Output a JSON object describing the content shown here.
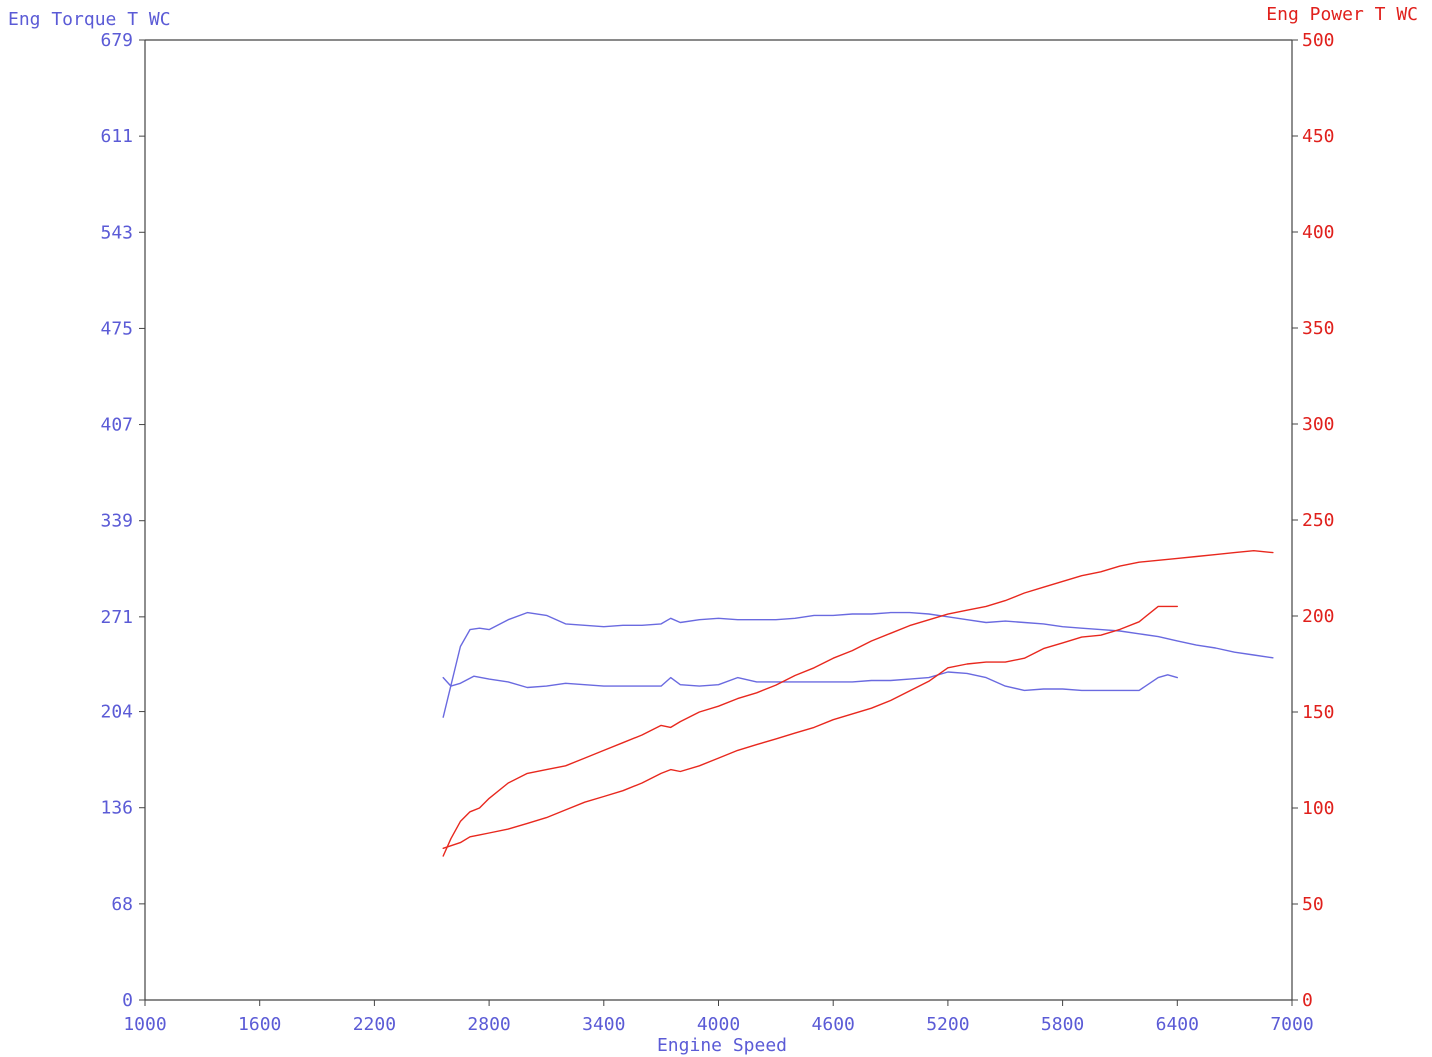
{
  "chart_data": {
    "type": "line",
    "xlabel": "Engine Speed",
    "ylabel_left": "Eng Torque T WC",
    "ylabel_right": "Eng Power T WC",
    "xlim": [
      1000,
      7000
    ],
    "ylim_left": [
      0,
      679
    ],
    "ylim_right": [
      0,
      500
    ],
    "x_ticks": [
      1000,
      1600,
      2200,
      2800,
      3400,
      4000,
      4600,
      5200,
      5800,
      6400,
      7000
    ],
    "y_left_ticks": [
      0,
      68,
      136,
      204,
      271,
      339,
      407,
      475,
      543,
      611,
      679
    ],
    "y_right_ticks": [
      0,
      50,
      100,
      150,
      200,
      250,
      300,
      350,
      400,
      450,
      500
    ],
    "grid": false,
    "colors": {
      "torque": "#6a6ae0",
      "power": "#e8281e",
      "axis": "#444444"
    },
    "series": [
      {
        "axis": "left",
        "color": "#6a6ae0",
        "x": [
          2560,
          2650,
          2700,
          2750,
          2800,
          2900,
          3000,
          3100,
          3200,
          3300,
          3400,
          3500,
          3600,
          3700,
          3750,
          3800,
          3900,
          4000,
          4100,
          4200,
          4300,
          4400,
          4500,
          4600,
          4700,
          4800,
          4900,
          5000,
          5100,
          5200,
          5300,
          5400,
          5500,
          5600,
          5700,
          5800,
          5900,
          6000,
          6100,
          6200,
          6300,
          6400,
          6500,
          6600,
          6700,
          6800,
          6900
        ],
        "y": [
          200,
          250,
          262,
          263,
          262,
          269,
          274,
          272,
          266,
          265,
          264,
          265,
          265,
          266,
          270,
          267,
          269,
          270,
          269,
          269,
          269,
          270,
          272,
          272,
          273,
          273,
          274,
          274,
          273,
          271,
          269,
          267,
          268,
          267,
          266,
          264,
          263,
          262,
          261,
          259,
          257,
          254,
          251,
          249,
          246,
          244,
          242
        ]
      },
      {
        "axis": "left",
        "color": "#6a6ae0",
        "x": [
          2560,
          2600,
          2650,
          2720,
          2800,
          2900,
          3000,
          3100,
          3200,
          3300,
          3400,
          3500,
          3600,
          3700,
          3750,
          3800,
          3900,
          4000,
          4100,
          4200,
          4300,
          4400,
          4500,
          4600,
          4700,
          4800,
          4900,
          5000,
          5100,
          5200,
          5300,
          5400,
          5500,
          5600,
          5700,
          5800,
          5900,
          6000,
          6100,
          6200,
          6300,
          6350,
          6400
        ],
        "y": [
          228,
          222,
          224,
          229,
          227,
          225,
          221,
          222,
          224,
          223,
          222,
          222,
          222,
          222,
          228,
          223,
          222,
          223,
          228,
          225,
          225,
          225,
          225,
          225,
          225,
          226,
          226,
          227,
          228,
          232,
          231,
          228,
          222,
          219,
          220,
          220,
          219,
          219,
          219,
          219,
          228,
          230,
          228
        ]
      },
      {
        "axis": "right",
        "color": "#e8281e",
        "x": [
          2560,
          2600,
          2650,
          2700,
          2750,
          2800,
          2900,
          3000,
          3100,
          3200,
          3300,
          3400,
          3500,
          3600,
          3700,
          3750,
          3800,
          3900,
          4000,
          4100,
          4200,
          4300,
          4400,
          4500,
          4600,
          4700,
          4800,
          4900,
          5000,
          5100,
          5200,
          5300,
          5400,
          5500,
          5600,
          5700,
          5800,
          5900,
          6000,
          6100,
          6200,
          6300,
          6400,
          6500,
          6600,
          6700,
          6800,
          6900
        ],
        "y": [
          75,
          84,
          93,
          98,
          100,
          105,
          113,
          118,
          120,
          122,
          126,
          130,
          134,
          138,
          143,
          142,
          145,
          150,
          153,
          157,
          160,
          164,
          169,
          173,
          178,
          182,
          187,
          191,
          195,
          198,
          201,
          203,
          205,
          208,
          212,
          215,
          218,
          221,
          223,
          226,
          228,
          229,
          230,
          231,
          232,
          233,
          234,
          233
        ]
      },
      {
        "axis": "right",
        "color": "#e8281e",
        "x": [
          2560,
          2650,
          2700,
          2750,
          2800,
          2900,
          3000,
          3100,
          3200,
          3300,
          3400,
          3500,
          3600,
          3700,
          3750,
          3800,
          3900,
          4000,
          4100,
          4200,
          4300,
          4400,
          4500,
          4600,
          4700,
          4800,
          4900,
          5000,
          5100,
          5200,
          5300,
          5400,
          5500,
          5600,
          5700,
          5800,
          5900,
          6000,
          6100,
          6200,
          6300,
          6350,
          6400
        ],
        "y": [
          79,
          82,
          85,
          86,
          87,
          89,
          92,
          95,
          99,
          103,
          106,
          109,
          113,
          118,
          120,
          119,
          122,
          126,
          130,
          133,
          136,
          139,
          142,
          146,
          149,
          152,
          156,
          161,
          166,
          173,
          175,
          176,
          176,
          178,
          183,
          186,
          189,
          190,
          193,
          197,
          205,
          205,
          205
        ]
      }
    ]
  }
}
